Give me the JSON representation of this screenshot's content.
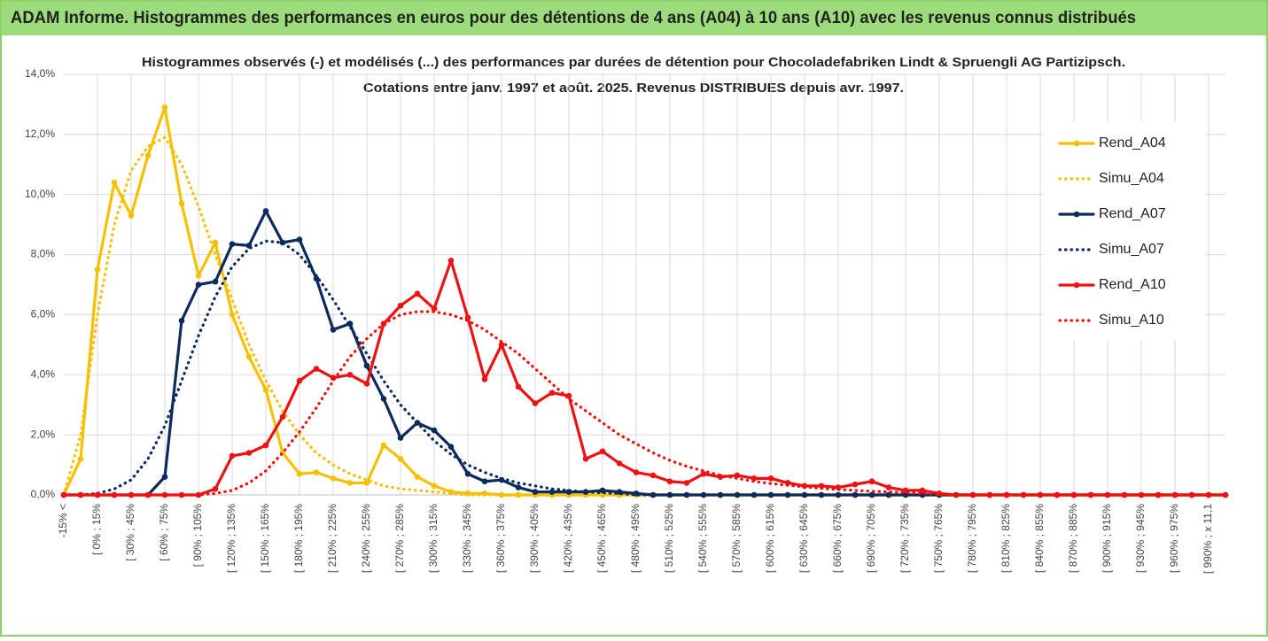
{
  "header": "ADAM Informe. Histogrammes des performances en euros pour des détentions de 4 ans (A04) à 10 ans (A10) avec les revenus connus distribués",
  "chart_data": {
    "type": "line",
    "title": [
      "Histogrammes observés (-) et modélisés (...) des performances par durées de détention pour Chocoladefabriken Lindt & Spruengli AG Partizipsch.",
      "Cotations entre janv. 1997 et août. 2025. Revenus DISTRIBUES depuis avr.  1997."
    ],
    "categories": [
      "-15% <",
      null,
      "[ 0% ; 15%",
      null,
      "[ 30% ; 45%",
      null,
      "[ 60% ; 75%",
      null,
      "[ 90% ; 105%",
      null,
      "[ 120% ; 135%",
      null,
      "[ 150% ; 165%",
      null,
      "[ 180% ; 195%",
      null,
      "[ 210% ; 225%",
      null,
      "[ 240% ; 255%",
      null,
      "[ 270% ; 285%",
      null,
      "[ 300% ; 315%",
      null,
      "[ 330% ; 345%",
      null,
      "[ 360% ; 375%",
      null,
      "[ 390% ; 405%",
      null,
      "[ 420% ; 435%",
      null,
      "[ 450% ; 465%",
      null,
      "[ 480% ; 495%",
      null,
      "[ 510% ; 525%",
      null,
      "[ 540% ; 555%",
      null,
      "[ 570% ; 585%",
      null,
      "[ 600% ; 615%",
      null,
      "[ 630% ; 645%",
      null,
      "[ 660% ; 675%",
      null,
      "[ 690% ; 705%",
      null,
      "[ 720% ; 735%",
      null,
      "[ 750% ; 765%",
      null,
      "[ 780% ; 795%",
      null,
      "[ 810% ; 825%",
      null,
      "[ 840% ; 855%",
      null,
      "[ 870% ; 885%",
      null,
      "[ 900% ; 915%",
      null,
      "[ 930% ; 945%",
      null,
      "[ 960% ; 975%",
      null,
      "[ 990% ; x 11,1",
      null
    ],
    "ylim": [
      0,
      14
    ],
    "yticks": [
      {
        "value": 0,
        "label": "0,0%"
      },
      {
        "value": 2,
        "label": "2,0%"
      },
      {
        "value": 4,
        "label": "4,0%"
      },
      {
        "value": 6,
        "label": "6,0%"
      },
      {
        "value": 8,
        "label": "8,0%"
      },
      {
        "value": 10,
        "label": "10,0%"
      },
      {
        "value": 12,
        "label": "12,0%"
      },
      {
        "value": 14,
        "label": "14,0%"
      }
    ],
    "grid": true,
    "legend": "right",
    "series": [
      {
        "name": "Rend_A04",
        "color": "#f5c000",
        "style": "solid",
        "markers": true,
        "values": [
          0,
          1.2,
          7.5,
          10.4,
          9.3,
          11.3,
          12.9,
          9.7,
          7.3,
          8.4,
          6.0,
          4.6,
          3.5,
          1.4,
          0.7,
          0.75,
          0.55,
          0.4,
          0.4,
          1.65,
          1.2,
          0.6,
          0.3,
          0.1,
          0.05,
          0.05,
          0,
          0,
          0,
          0,
          0,
          0,
          0,
          0,
          0,
          0,
          0,
          0,
          0,
          0,
          0,
          0,
          0,
          0,
          0,
          0,
          0,
          0,
          0,
          0,
          0,
          0,
          0,
          0,
          0,
          0,
          0,
          0,
          0,
          0,
          0,
          0,
          0,
          0,
          0,
          0,
          0,
          0,
          0,
          0
        ]
      },
      {
        "name": "Simu_A04",
        "color": "#f5c000",
        "style": "dotted",
        "markers": false,
        "values": [
          0,
          2.0,
          6.0,
          9.0,
          10.8,
          11.6,
          11.9,
          11.0,
          9.6,
          8.0,
          6.5,
          5.0,
          3.8,
          2.8,
          2.0,
          1.4,
          1.0,
          0.7,
          0.5,
          0.3,
          0.2,
          0.15,
          0.1,
          0.05,
          0,
          0,
          0,
          0,
          0,
          0,
          0,
          0,
          0,
          0,
          0,
          0,
          0,
          0,
          0,
          0,
          0,
          0,
          0,
          0,
          0,
          0,
          0,
          0,
          0,
          0,
          0,
          0,
          0,
          0,
          0,
          0,
          0,
          0,
          0,
          0,
          0,
          0,
          0,
          0,
          0,
          0,
          0,
          0,
          0,
          0
        ]
      },
      {
        "name": "Rend_A07",
        "color": "#0d2a5c",
        "style": "solid",
        "markers": true,
        "values": [
          0,
          0,
          0,
          0,
          0,
          0,
          0.6,
          5.8,
          7.0,
          7.1,
          8.35,
          8.3,
          9.45,
          8.4,
          8.5,
          7.2,
          5.5,
          5.7,
          4.3,
          3.2,
          1.9,
          2.4,
          2.15,
          1.6,
          0.7,
          0.45,
          0.5,
          0.25,
          0.1,
          0.1,
          0.1,
          0.1,
          0.15,
          0.1,
          0.05,
          0,
          0,
          0,
          0,
          0,
          0,
          0,
          0,
          0,
          0,
          0,
          0,
          0,
          0,
          0,
          0,
          0,
          0,
          0,
          0,
          0,
          0,
          0,
          0,
          0,
          0,
          0,
          0,
          0,
          0,
          0,
          0,
          0,
          0,
          0
        ]
      },
      {
        "name": "Simu_A07",
        "color": "#0d2a5c",
        "style": "dotted",
        "markers": false,
        "values": [
          0,
          0,
          0.05,
          0.2,
          0.5,
          1.2,
          2.3,
          3.8,
          5.3,
          6.6,
          7.6,
          8.2,
          8.45,
          8.4,
          8.0,
          7.3,
          6.5,
          5.6,
          4.7,
          3.8,
          3.0,
          2.4,
          1.8,
          1.35,
          1.0,
          0.75,
          0.55,
          0.4,
          0.3,
          0.2,
          0.15,
          0.1,
          0.07,
          0.05,
          0,
          0,
          0,
          0,
          0,
          0,
          0,
          0,
          0,
          0,
          0,
          0,
          0,
          0,
          0,
          0,
          0,
          0,
          0,
          0,
          0,
          0,
          0,
          0,
          0,
          0,
          0,
          0,
          0,
          0,
          0,
          0,
          0,
          0,
          0,
          0
        ]
      },
      {
        "name": "Rend_A10",
        "color": "#ee1111",
        "style": "solid",
        "markers": true,
        "values": [
          0,
          0,
          0,
          0,
          0,
          0,
          0,
          0,
          0,
          0.2,
          1.3,
          1.4,
          1.65,
          2.6,
          3.8,
          4.2,
          3.9,
          4.0,
          3.7,
          5.7,
          6.3,
          6.7,
          6.2,
          7.8,
          5.9,
          3.85,
          5.0,
          3.6,
          3.05,
          3.4,
          3.3,
          1.2,
          1.45,
          1.05,
          0.75,
          0.65,
          0.45,
          0.4,
          0.7,
          0.6,
          0.65,
          0.55,
          0.55,
          0.4,
          0.3,
          0.3,
          0.25,
          0.35,
          0.45,
          0.25,
          0.15,
          0.15,
          0.05,
          0,
          0,
          0,
          0,
          0,
          0,
          0,
          0,
          0,
          0,
          0,
          0,
          0,
          0,
          0,
          0,
          0
        ]
      },
      {
        "name": "Simu_A10",
        "color": "#ee1111",
        "style": "dotted",
        "markers": false,
        "values": [
          0,
          0,
          0,
          0,
          0,
          0,
          0,
          0,
          0,
          0.05,
          0.15,
          0.4,
          0.8,
          1.4,
          2.1,
          2.9,
          3.8,
          4.6,
          5.2,
          5.7,
          6.0,
          6.1,
          6.1,
          6.0,
          5.8,
          5.5,
          5.1,
          4.7,
          4.2,
          3.7,
          3.2,
          2.8,
          2.4,
          2.0,
          1.7,
          1.4,
          1.15,
          0.95,
          0.8,
          0.65,
          0.55,
          0.45,
          0.38,
          0.32,
          0.27,
          0.22,
          0.18,
          0.15,
          0.12,
          0.1,
          0.08,
          0.05,
          0.03,
          0,
          0,
          0,
          0,
          0,
          0,
          0,
          0,
          0,
          0,
          0,
          0,
          0,
          0,
          0,
          0,
          0
        ]
      }
    ]
  }
}
